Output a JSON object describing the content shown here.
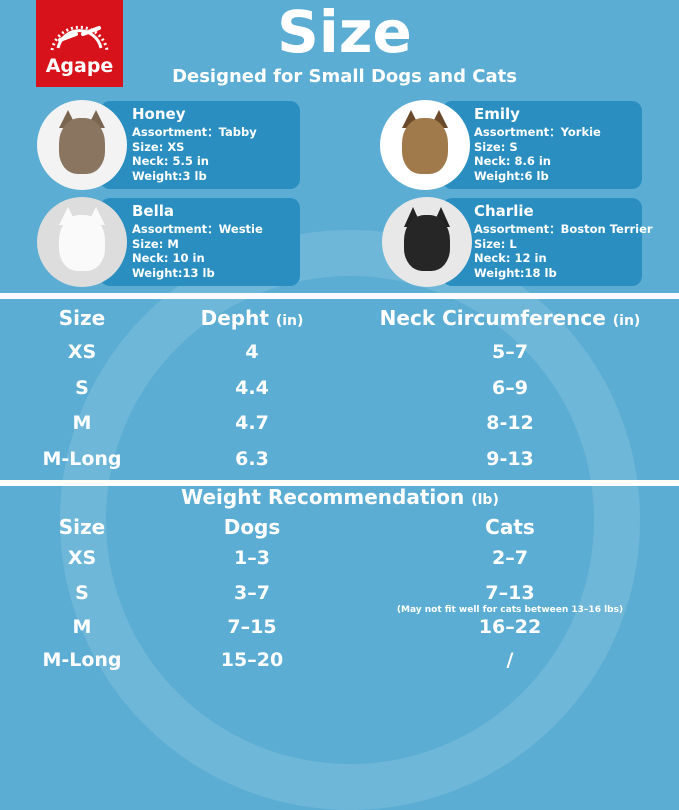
{
  "brand": {
    "logo_text": "Agape",
    "color": "#d8121a"
  },
  "header": {
    "title": "Size",
    "subtitle": "Designed for Small Dogs and Cats"
  },
  "pets": [
    {
      "name": "Honey",
      "assortment": "Assortment：Tabby",
      "size": "Size: XS",
      "neck": "Neck: 5.5 in",
      "weight": "Weight:3 lb",
      "image": "tabby-kitten"
    },
    {
      "name": "Bella",
      "assortment": "Assortment：Westie",
      "size": "Size: M",
      "neck": "Neck: 10 in",
      "weight": "Weight:13 lb",
      "image": "westie-dog"
    },
    {
      "name": "Emily",
      "assortment": "Assortment：Yorkie",
      "size": "Size: S",
      "neck": "Neck: 8.6 in",
      "weight": "Weight:6 lb",
      "image": "yorkie-dog"
    },
    {
      "name": "Charlie",
      "assortment": "Assortment：Boston Terrier",
      "size": "Size: L",
      "neck": "Neck: 12 in",
      "weight": "Weight:18 lb",
      "image": "black-terrier-dog"
    }
  ],
  "size_table": {
    "headers": {
      "size": "Size",
      "depth": "Depht",
      "depth_unit": "(in)",
      "neck": "Neck Circumference",
      "neck_unit": "(in)"
    },
    "rows": [
      {
        "size": "XS",
        "depth": "4",
        "neck": "5–7"
      },
      {
        "size": "S",
        "depth": "4.4",
        "neck": "6–9"
      },
      {
        "size": "M",
        "depth": "4.7",
        "neck": "8-12"
      },
      {
        "size": "M-Long",
        "depth": "6.3",
        "neck": "9-13"
      }
    ]
  },
  "weight_table": {
    "title": "Weight Recommendation",
    "title_unit": "(lb)",
    "headers": {
      "size": "Size",
      "dogs": "Dogs",
      "cats": "Cats"
    },
    "rows": [
      {
        "size": "XS",
        "dogs": "1–3",
        "cats": "2–7"
      },
      {
        "size": "S",
        "dogs": "3–7",
        "cats": "7–13"
      },
      {
        "size": "M",
        "dogs": "7–15",
        "cats": "16–22"
      },
      {
        "size": "M-Long",
        "dogs": "15–20",
        "cats": "/"
      }
    ],
    "note": "(May not fit well for cats between 13–16 lbs)"
  },
  "colors": {
    "background": "#5badd3",
    "card": "#2a8fc0"
  }
}
